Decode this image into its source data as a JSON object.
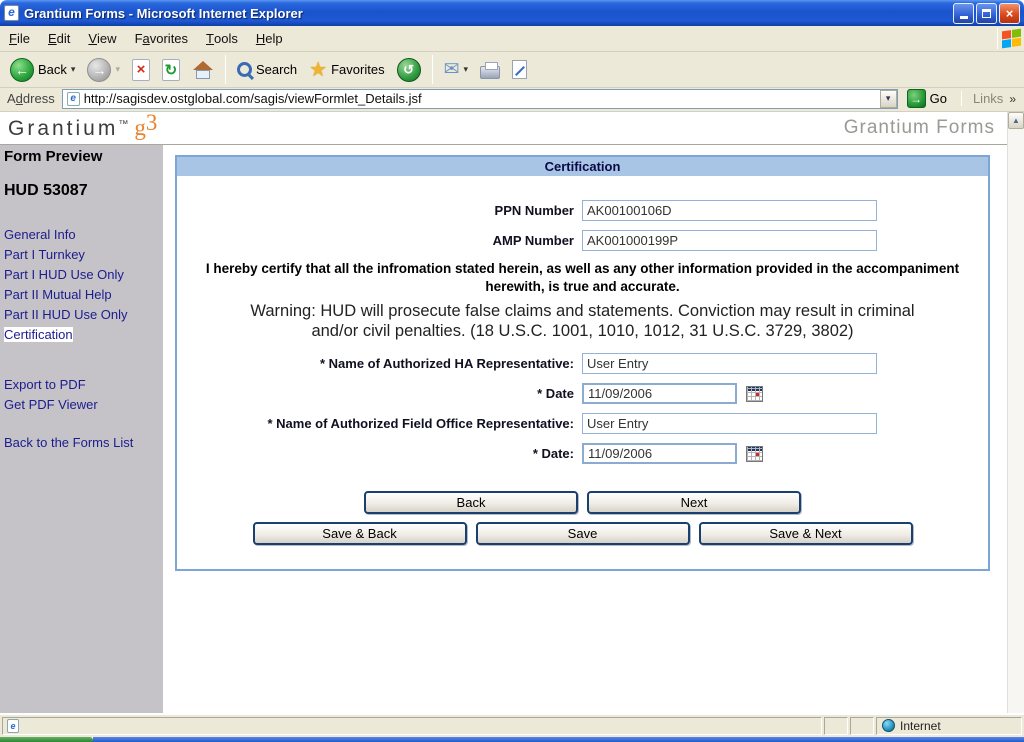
{
  "window": {
    "title": "Grantium Forms - Microsoft Internet Explorer",
    "menu": [
      {
        "pre": "",
        "u": "F",
        "post": "ile"
      },
      {
        "pre": "",
        "u": "E",
        "post": "dit"
      },
      {
        "pre": "",
        "u": "V",
        "post": "iew"
      },
      {
        "pre": "F",
        "u": "a",
        "post": "vorites"
      },
      {
        "pre": "",
        "u": "T",
        "post": "ools"
      },
      {
        "pre": "",
        "u": "H",
        "post": "elp"
      }
    ]
  },
  "toolbar": {
    "back_label": "Back",
    "search_label": "Search",
    "favorites_label": "Favorites"
  },
  "address_bar": {
    "label_pre": "A",
    "label_u": "d",
    "label_post": "dress",
    "url": "http://sagisdev.ostglobal.com/sagis/viewFormlet_Details.jsf",
    "go_label": "Go",
    "links_label": "Links"
  },
  "branding": {
    "logo_name": "Grantium",
    "logo_tm": "™",
    "logo_g": "g",
    "logo_3": "3",
    "app_title": "Grantium Forms",
    "logo_orange": "#e8832c"
  },
  "sidebar": {
    "heading": "Form Preview",
    "form_id": "HUD 53087",
    "nav_links": [
      {
        "label": "General Info",
        "selected": false
      },
      {
        "label": "Part I Turnkey",
        "selected": false
      },
      {
        "label": "Part I HUD Use Only",
        "selected": false
      },
      {
        "label": "Part II Mutual Help",
        "selected": false
      },
      {
        "label": "Part II HUD Use Only",
        "selected": false
      },
      {
        "label": "Certification",
        "selected": true
      }
    ],
    "pdf_links": [
      {
        "label": "Export to PDF"
      },
      {
        "label": "Get PDF Viewer"
      }
    ],
    "back_link": "Back to the Forms List"
  },
  "form": {
    "title": "Certification",
    "fields": [
      {
        "label": "PPN Number",
        "value": "AK00100106D"
      },
      {
        "label": "AMP Number",
        "value": "AK001000199P"
      }
    ],
    "certify_text": "I hereby certify that all the infromation stated herein, as well as any other information provided in the accompaniment herewith, is true and accurate.",
    "warning_text": "Warning: HUD will prosecute false claims and statements. Conviction may result in criminal and/or civil penalties. (18 U.S.C. 1001, 1010, 1012, 31 U.S.C. 3729, 3802)",
    "entries": [
      {
        "label": "* Name of Authorized HA Representative:",
        "value": "User Entry",
        "calendar": false
      },
      {
        "label": "* Date",
        "value": "11/09/2006",
        "calendar": true
      },
      {
        "label": "* Name of Authorized Field Office Representative:",
        "value": "User Entry",
        "calendar": false
      },
      {
        "label": "* Date:",
        "value": "11/09/2006",
        "calendar": true
      }
    ],
    "nav_buttons": [
      {
        "label": "Back"
      },
      {
        "label": "Next"
      }
    ],
    "save_buttons": [
      {
        "label": "Save & Back"
      },
      {
        "label": "Save"
      },
      {
        "label": "Save & Next"
      }
    ]
  },
  "status_bar": {
    "zone": "Internet"
  },
  "colors": {
    "panel_border": "#7ba6d6",
    "panel_header_bg": "#a9c5e5",
    "sidebar_bg": "#c5c3c7",
    "link_navy": "#1c1c8e",
    "chrome_beige": "#ece9d8"
  },
  "icons": {
    "ie_e": "e",
    "back_arrow": "←",
    "forward_arrow": "→",
    "stop": "×",
    "refresh": "↻",
    "history": "↺",
    "star": "★",
    "mail": "✉",
    "go_arrow": "→",
    "caret_down": "▾",
    "links_chevron": "»",
    "scroll_up": "▲",
    "close": "×"
  }
}
